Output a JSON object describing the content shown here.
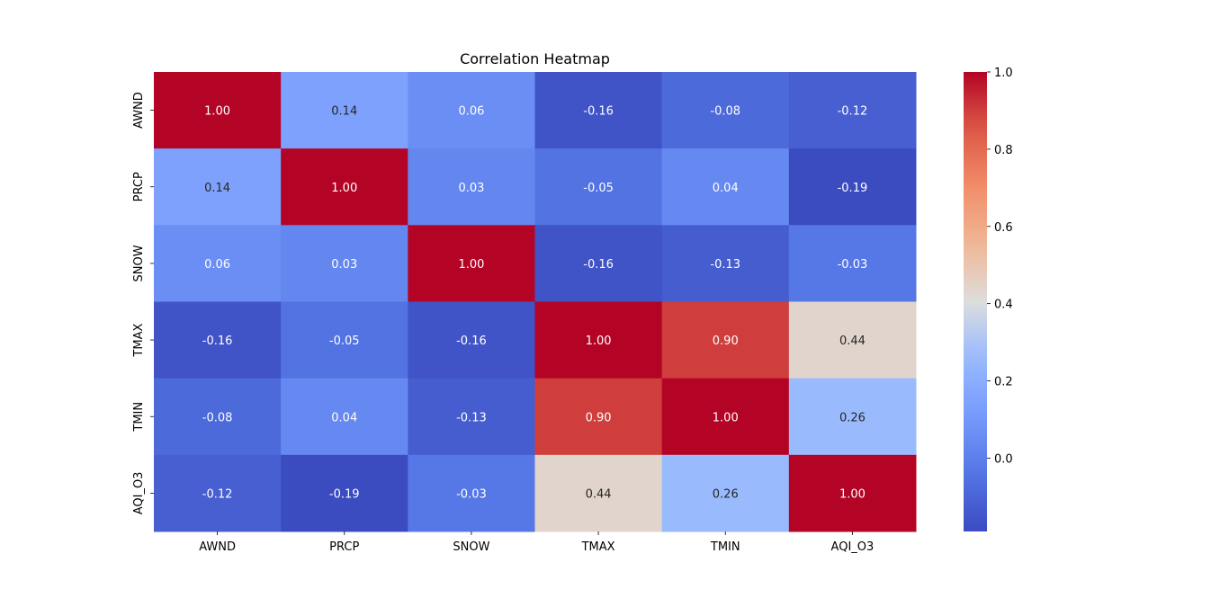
{
  "chart_data": {
    "type": "heatmap",
    "title": "Correlation Heatmap",
    "x_labels": [
      "AWND",
      "PRCP",
      "SNOW",
      "TMAX",
      "TMIN",
      "AQI_O3"
    ],
    "y_labels": [
      "AWND",
      "PRCP",
      "SNOW",
      "TMAX",
      "TMIN",
      "AQI_O3"
    ],
    "values": [
      [
        1.0,
        0.14,
        0.06,
        -0.16,
        -0.08,
        -0.12
      ],
      [
        0.14,
        1.0,
        0.03,
        -0.05,
        0.04,
        -0.19
      ],
      [
        0.06,
        0.03,
        1.0,
        -0.16,
        -0.13,
        -0.03
      ],
      [
        -0.16,
        -0.05,
        -0.16,
        1.0,
        0.9,
        0.44
      ],
      [
        -0.08,
        0.04,
        -0.13,
        0.9,
        1.0,
        0.26
      ],
      [
        -0.12,
        -0.19,
        -0.03,
        0.44,
        0.26,
        1.0
      ]
    ],
    "annotations": [
      [
        "1.00",
        "0.14",
        "0.06",
        "-0.16",
        "-0.08",
        "-0.12"
      ],
      [
        "0.14",
        "1.00",
        "0.03",
        "-0.05",
        "0.04",
        "-0.19"
      ],
      [
        "0.06",
        "0.03",
        "1.00",
        "-0.16",
        "-0.13",
        "-0.03"
      ],
      [
        "-0.16",
        "-0.05",
        "-0.16",
        "1.00",
        "0.90",
        "0.44"
      ],
      [
        "-0.08",
        "0.04",
        "-0.13",
        "0.90",
        "1.00",
        "0.26"
      ],
      [
        "-0.12",
        "-0.19",
        "-0.03",
        "0.44",
        "0.26",
        "1.00"
      ]
    ],
    "colormap": "coolwarm",
    "color_range": [
      -0.19,
      1.0
    ],
    "colorbar_ticks": [
      1.0,
      0.8,
      0.6,
      0.4,
      0.2,
      0.0
    ],
    "colorbar_tick_labels": [
      "1.0",
      "0.8",
      "0.6",
      "0.4",
      "0.2",
      "0.0"
    ],
    "colorbar_position": "right",
    "grid": false
  }
}
